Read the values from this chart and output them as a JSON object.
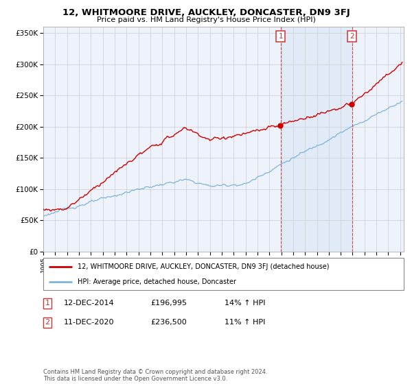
{
  "title": "12, WHITMOORE DRIVE, AUCKLEY, DONCASTER, DN9 3FJ",
  "subtitle": "Price paid vs. HM Land Registry's House Price Index (HPI)",
  "ylabel_ticks": [
    "£0",
    "£50K",
    "£100K",
    "£150K",
    "£200K",
    "£250K",
    "£300K",
    "£350K"
  ],
  "ytick_vals": [
    0,
    50000,
    100000,
    150000,
    200000,
    250000,
    300000,
    350000
  ],
  "ylim": [
    0,
    360000
  ],
  "marker1_year": 2014.95,
  "marker1_val": 196995,
  "marker2_year": 2020.95,
  "marker2_val": 236500,
  "marker1_date": "12-DEC-2014",
  "marker1_price": "£196,995",
  "marker1_hpi": "14% ↑ HPI",
  "marker2_date": "11-DEC-2020",
  "marker2_price": "£236,500",
  "marker2_hpi": "11% ↑ HPI",
  "line1_color": "#cc0000",
  "line2_color": "#7fb3d9",
  "background_color": "#ffffff",
  "plot_bg_color": "#eef3fb",
  "grid_color": "#cccccc",
  "marker_box_color": "#cc3333",
  "legend_line1": "12, WHITMOORE DRIVE, AUCKLEY, DONCASTER, DN9 3FJ (detached house)",
  "legend_line2": "HPI: Average price, detached house, Doncaster",
  "footnote": "Contains HM Land Registry data © Crown copyright and database right 2024.\nThis data is licensed under the Open Government Licence v3.0."
}
